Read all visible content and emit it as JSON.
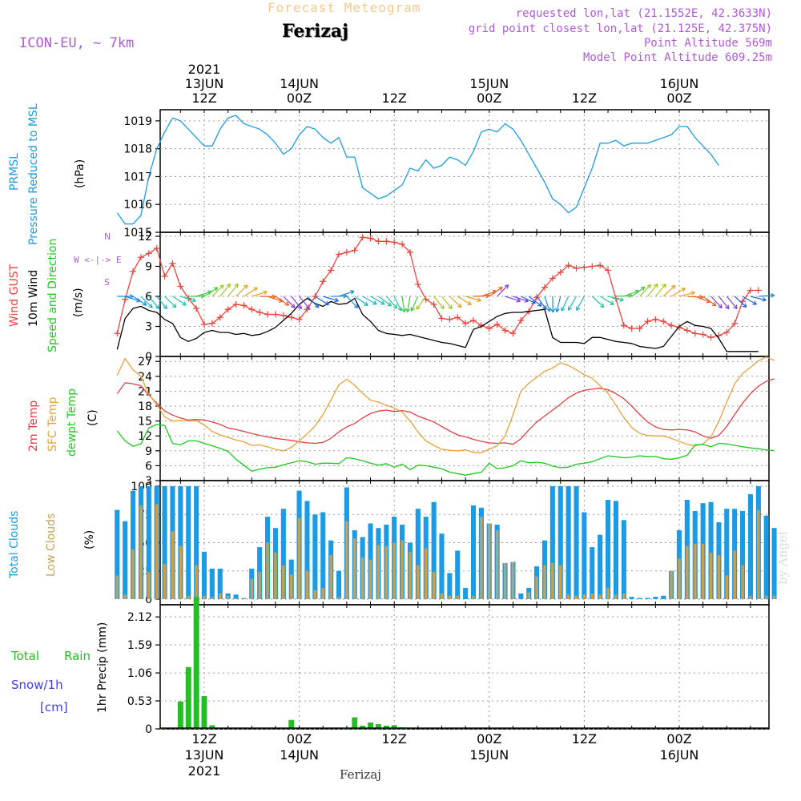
{
  "header": {
    "title": "Forecast Meteogram",
    "location": "Ferizaj",
    "model": "ICON-EU, ~ 7km",
    "requested": "requested lon,lat (21.1552E, 42.3633N)",
    "grid_point": "grid point closest lon,lat (21.125E, 42.375N)",
    "point_altitude": "Point Altitude 569m",
    "model_altitude": "Model Point Altitude 609.25m"
  },
  "footer": {
    "location": "Ferizaj",
    "watermark": "by Angel"
  },
  "time_axis": {
    "top_year": "2021",
    "top_ticks": [
      {
        "hour": 12,
        "l1": "13JUN",
        "l2": "12Z"
      },
      {
        "hour": 24,
        "l1": "14JUN",
        "l2": "00Z"
      },
      {
        "hour": 36,
        "l1": "",
        "l2": "12Z"
      },
      {
        "hour": 48,
        "l1": "15JUN",
        "l2": "00Z"
      },
      {
        "hour": 60,
        "l1": "",
        "l2": "12Z"
      },
      {
        "hour": 72,
        "l1": "16JUN",
        "l2": "00Z"
      }
    ],
    "bottom_ticks": [
      {
        "hour": 12,
        "l1": "12Z",
        "l2": "13JUN",
        "l3": "2021"
      },
      {
        "hour": 24,
        "l1": "00Z",
        "l2": "14JUN",
        "l3": ""
      },
      {
        "hour": 36,
        "l1": "12Z",
        "l2": "",
        "l3": ""
      },
      {
        "hour": 48,
        "l1": "00Z",
        "l2": "15JUN",
        "l3": ""
      },
      {
        "hour": 60,
        "l1": "12Z",
        "l2": "",
        "l3": ""
      },
      {
        "hour": 72,
        "l1": "00Z",
        "l2": "16JUN",
        "l3": ""
      }
    ]
  },
  "labels": {
    "prmsl": "PRMSL",
    "pressure": "Pressure Reduced to MSL",
    "hpa": "(hPa)",
    "gust": "Wind GUST",
    "wind10": "10m Wind",
    "speeddir": "Speed and Direction",
    "ms": "(m/s)",
    "compass": "W <-|-> E",
    "compass_n": "N",
    "compass_s": "S",
    "t2m": "2m Temp",
    "sfc": "SFC Temp",
    "dewpt": "dewpt Temp",
    "c": "(C)",
    "total_clouds": "Total Clouds",
    "low_clouds": "Low Clouds",
    "pct": "(%)",
    "total": "Total",
    "rain": "Rain",
    "snow": "Snow/1h",
    "cm": "[cm]",
    "precip": "1hr Precip (mm)"
  },
  "colors": {
    "pressure": "#1e9be0",
    "gust": "#e8443c",
    "wind": "#000000",
    "t2m": "#e04040",
    "sfc": "#e6a23c",
    "dewpt": "#1ec81e",
    "total_clouds": "#1a9be6",
    "low_clouds": "#c8a052",
    "rain": "#22c022",
    "snow": "#4040e0",
    "meta": "#b05ad8"
  },
  "chart_data": [
    {
      "type": "line",
      "name": "pressure",
      "ylabel": "Pressure Reduced to MSL (hPa)",
      "ylim": [
        1015,
        1019.4
      ],
      "yticks": [
        1015,
        1016,
        1017,
        1018,
        1019
      ],
      "grid": true,
      "x_start_hour": 1,
      "x_step_hours": 1,
      "values": [
        1015.7,
        1015.3,
        1015.3,
        1015.6,
        1017.0,
        1018.0,
        1018.6,
        1019.1,
        1019.0,
        1018.7,
        1018.4,
        1018.1,
        1018.1,
        1018.7,
        1019.1,
        1019.2,
        1018.9,
        1018.8,
        1018.7,
        1018.5,
        1018.2,
        1017.8,
        1018.0,
        1018.5,
        1018.8,
        1018.7,
        1018.4,
        1018.2,
        1018.4,
        1017.7,
        1017.7,
        1016.6,
        1016.4,
        1016.2,
        1016.3,
        1016.5,
        1016.7,
        1017.3,
        1017.2,
        1017.6,
        1017.3,
        1017.4,
        1017.7,
        1017.6,
        1017.4,
        1017.9,
        1018.6,
        1018.7,
        1018.6,
        1018.9,
        1018.7,
        1018.3,
        1017.8,
        1017.3,
        1016.8,
        1016.2,
        1016.0,
        1015.7,
        1015.9,
        1016.6,
        1017.3,
        1018.2,
        1018.2,
        1018.3,
        1018.1,
        1018.2,
        1018.2,
        1018.2,
        1018.3,
        1018.4,
        1018.5,
        1018.8,
        1018.8,
        1018.4,
        1018.1,
        1017.8,
        1017.4
      ]
    },
    {
      "type": "line",
      "name": "wind",
      "ylabel": "(m/s)",
      "ylim": [
        0,
        12.4
      ],
      "yticks": [
        0,
        3,
        6,
        9,
        12
      ],
      "grid": true,
      "x_start_hour": 1,
      "x_step_hours": 1,
      "series": [
        {
          "name": "Wind GUST",
          "values": [
            2.3,
            5.7,
            8.5,
            9.9,
            10.3,
            10.8,
            8.0,
            9.3,
            7.0,
            5.8,
            4.8,
            3.2,
            3.3,
            3.9,
            4.7,
            5.2,
            5.1,
            4.7,
            4.4,
            4.2,
            4.2,
            4.1,
            3.9,
            3.7,
            4.7,
            6.0,
            7.5,
            8.6,
            10.2,
            10.4,
            10.6,
            11.9,
            11.8,
            11.5,
            11.5,
            11.4,
            11.2,
            10.4,
            7.2,
            5.7,
            5.2,
            3.8,
            3.7,
            3.9,
            3.3,
            3.6,
            3.1,
            2.8,
            3.2,
            2.6,
            2.3,
            3.6,
            4.5,
            5.9,
            6.9,
            7.8,
            8.4,
            9.1,
            8.8,
            8.9,
            9.0,
            9.1,
            8.6,
            5.8,
            3.1,
            2.8,
            2.8,
            3.5,
            3.7,
            3.5,
            3.1,
            2.9,
            2.6,
            2.3,
            2.2,
            1.9,
            2.1,
            2.4,
            3.3,
            5.5,
            6.6,
            6.6
          ]
        },
        {
          "name": "10m Wind",
          "values": [
            0.7,
            3.8,
            4.8,
            5.0,
            4.6,
            4.4,
            3.7,
            3.3,
            1.9,
            1.5,
            1.8,
            2.4,
            2.6,
            2.4,
            2.4,
            2.2,
            2.3,
            2.1,
            2.2,
            2.5,
            2.9,
            3.6,
            4.3,
            5.2,
            5.8,
            5.3,
            5.0,
            5.5,
            5.2,
            5.3,
            5.8,
            4.2,
            3.5,
            2.6,
            2.3,
            2.2,
            2.1,
            2.2,
            2.0,
            1.8,
            1.6,
            1.4,
            1.3,
            1.1,
            0.9,
            2.7,
            3.0,
            3.5,
            4.0,
            4.3,
            4.4,
            4.4,
            4.5,
            4.6,
            4.7,
            1.9,
            1.4,
            1.4,
            1.4,
            1.3,
            1.9,
            1.9,
            1.7,
            1.5,
            1.4,
            1.3,
            1.0,
            0.9,
            0.8,
            1.0,
            2.0,
            3.0,
            3.5,
            3.1,
            3.0,
            2.8,
            1.8,
            0.5,
            0.5,
            0.5,
            0.5,
            0.5
          ]
        }
      ]
    },
    {
      "type": "line",
      "name": "temperature",
      "ylabel": "(C)",
      "ylim": [
        3,
        28
      ],
      "yticks": [
        3,
        6,
        9,
        12,
        15,
        18,
        21,
        24,
        27
      ],
      "grid": true,
      "x_start_hour": 1,
      "x_step_hours": 1,
      "series": [
        {
          "name": "2m Temp",
          "values": [
            20.5,
            22.7,
            22.5,
            22.1,
            20.2,
            18.6,
            17.0,
            16.2,
            15.6,
            15.2,
            15.3,
            15.2,
            14.8,
            14.3,
            13.6,
            13.3,
            12.9,
            12.5,
            12.1,
            11.8,
            11.5,
            11.3,
            11.1,
            10.8,
            10.6,
            10.5,
            10.7,
            11.5,
            12.8,
            13.8,
            14.5,
            15.6,
            16.5,
            17.0,
            17.2,
            16.9,
            17.1,
            16.8,
            16.0,
            15.4,
            14.8,
            13.9,
            13.0,
            12.2,
            11.8,
            11.3,
            10.9,
            10.6,
            10.5,
            10.6,
            10.3,
            11.4,
            13.2,
            14.8,
            16.0,
            17.2,
            18.4,
            19.7,
            20.6,
            21.2,
            21.4,
            21.6,
            21.3,
            20.5,
            19.5,
            18.0,
            16.3,
            14.8,
            13.8,
            13.3,
            13.2,
            13.3,
            13.2,
            12.8,
            12.0,
            11.5,
            12.1,
            13.9,
            16.3,
            18.6,
            20.5,
            22.0,
            23.0,
            23.5
          ]
        },
        {
          "name": "SFC Temp",
          "values": [
            24.2,
            27.6,
            25.3,
            24.0,
            20.4,
            18.3,
            15.8,
            15.0,
            15.1,
            15.0,
            15.1,
            14.2,
            12.9,
            12.2,
            11.7,
            11.2,
            10.8,
            10.1,
            10.2,
            9.8,
            9.3,
            9.0,
            9.7,
            11.0,
            12.4,
            14.0,
            16.3,
            19.2,
            22.3,
            23.4,
            22.2,
            20.6,
            19.2,
            18.8,
            18.2,
            17.6,
            16.8,
            15.0,
            12.8,
            11.0,
            10.1,
            9.3,
            9.1,
            9.0,
            9.2,
            8.7,
            8.6,
            9.3,
            10.0,
            12.0,
            16.3,
            21.0,
            22.6,
            23.8,
            25.0,
            25.7,
            26.7,
            26.2,
            25.3,
            24.3,
            23.6,
            22.1,
            20.6,
            18.2,
            15.7,
            13.7,
            12.5,
            12.1,
            12.0,
            12.0,
            11.5,
            10.9,
            10.3,
            10.0,
            10.4,
            11.8,
            14.9,
            18.8,
            22.5,
            24.6,
            25.8,
            27.1,
            27.9,
            27.2
          ]
        },
        {
          "name": "dewpt Temp",
          "values": [
            13.0,
            11.0,
            9.9,
            10.4,
            13.6,
            14.3,
            14.1,
            10.5,
            10.2,
            11.0,
            11.0,
            10.5,
            10.0,
            9.5,
            8.9,
            7.3,
            6.1,
            4.9,
            5.3,
            5.6,
            5.7,
            6.2,
            6.6,
            7.0,
            6.8,
            6.3,
            6.5,
            6.5,
            6.4,
            7.6,
            7.4,
            7.0,
            6.5,
            6.1,
            6.4,
            5.7,
            6.3,
            5.2,
            6.1,
            6.0,
            5.7,
            5.4,
            4.7,
            4.4,
            4.1,
            4.4,
            4.7,
            6.5,
            5.4,
            5.6,
            6.0,
            7.0,
            6.6,
            6.7,
            6.5,
            5.9,
            5.6,
            5.7,
            6.3,
            6.5,
            6.8,
            7.4,
            8.0,
            7.8,
            7.6,
            7.7,
            8.0,
            7.8,
            7.9,
            7.4,
            7.3,
            7.6,
            8.1,
            10.2,
            10.3,
            9.8,
            10.5,
            10.4,
            10.1,
            9.8,
            9.6,
            9.4,
            9.2,
            9.0
          ]
        }
      ]
    },
    {
      "type": "bar",
      "name": "clouds",
      "ylabel": "(%)",
      "ylim": [
        -5,
        105
      ],
      "yticks": [
        0,
        25,
        50,
        75,
        100
      ],
      "grid": true,
      "x_start_hour": 1,
      "x_step_hours": 1,
      "series": [
        {
          "name": "Total Clouds",
          "values": [
            79,
            69,
            96,
            100,
            100,
            100,
            100,
            100,
            100,
            100,
            100,
            42,
            27,
            27,
            5,
            4,
            1,
            27,
            46,
            73,
            63,
            80,
            35,
            96,
            87,
            75,
            77,
            52,
            25,
            99,
            61,
            55,
            67,
            63,
            66,
            73,
            66,
            50,
            80,
            73,
            86,
            58,
            23,
            43,
            10,
            83,
            81,
            67,
            66,
            32,
            33,
            5,
            10,
            29,
            52,
            100,
            100,
            100,
            100,
            77,
            46,
            57,
            88,
            87,
            70,
            2,
            1,
            1,
            2,
            3,
            25,
            61,
            88,
            78,
            85,
            86,
            68,
            80,
            80,
            78,
            93,
            100,
            74,
            63
          ]
        },
        {
          "name": "Low Clouds",
          "values": [
            21,
            4,
            44,
            83,
            24,
            84,
            31,
            60,
            47,
            3,
            30,
            3,
            2,
            5,
            3,
            1,
            1,
            18,
            24,
            50,
            41,
            30,
            22,
            72,
            25,
            8,
            10,
            39,
            2,
            69,
            54,
            37,
            35,
            48,
            47,
            50,
            52,
            42,
            30,
            45,
            24,
            5,
            3,
            3,
            0,
            3,
            73,
            67,
            61,
            32,
            33,
            0,
            6,
            20,
            30,
            32,
            30,
            4,
            3,
            4,
            5,
            4,
            10,
            4,
            5,
            0,
            0,
            0,
            0,
            0,
            25,
            36,
            47,
            49,
            49,
            41,
            39,
            21,
            43,
            30,
            3,
            79,
            3,
            3
          ]
        }
      ]
    },
    {
      "type": "bar",
      "name": "precipitation",
      "ylabel": "1hr Precip (mm)",
      "ylim": [
        0,
        2.35
      ],
      "yticks": [
        0,
        0.53,
        1.06,
        1.59,
        2.12
      ],
      "grid": true,
      "x_start_hour": 1,
      "x_step_hours": 1,
      "series": [
        {
          "name": "Total Rain",
          "values": [
            0,
            0,
            0,
            0,
            0,
            0,
            0.01,
            0,
            0.52,
            1.17,
            2.5,
            0.62,
            0.07,
            0,
            0,
            0,
            0,
            0,
            0,
            0,
            0,
            0,
            0.17,
            0,
            0,
            0,
            0,
            0,
            0,
            0.01,
            0.22,
            0.06,
            0.12,
            0.09,
            0.06,
            0.07,
            0.03,
            0,
            0,
            0,
            0,
            0,
            0,
            0,
            0,
            0,
            0,
            0,
            0,
            0,
            0,
            0,
            0,
            0,
            0,
            0,
            0,
            0,
            0,
            0,
            0,
            0,
            0,
            0,
            0,
            0,
            0,
            0,
            0,
            0,
            0,
            0,
            0,
            0,
            0,
            0,
            0,
            0,
            0,
            0,
            0,
            0,
            0,
            0
          ]
        },
        {
          "name": "Snow/1h",
          "values": [
            0,
            0,
            0,
            0,
            0,
            0,
            0,
            0,
            0,
            0,
            0,
            0,
            0,
            0,
            0,
            0,
            0,
            0,
            0,
            0,
            0,
            0,
            0,
            0,
            0,
            0,
            0,
            0,
            0,
            0,
            0,
            0,
            0,
            0,
            0,
            0,
            0,
            0,
            0,
            0,
            0,
            0,
            0,
            0,
            0,
            0,
            0,
            0,
            0,
            0,
            0,
            0,
            0,
            0,
            0,
            0,
            0,
            0,
            0,
            0,
            0,
            0,
            0,
            0,
            0,
            0,
            0,
            0,
            0,
            0,
            0,
            0,
            0,
            0,
            0,
            0,
            0,
            0,
            0,
            0,
            0,
            0,
            0,
            0
          ]
        }
      ]
    }
  ]
}
